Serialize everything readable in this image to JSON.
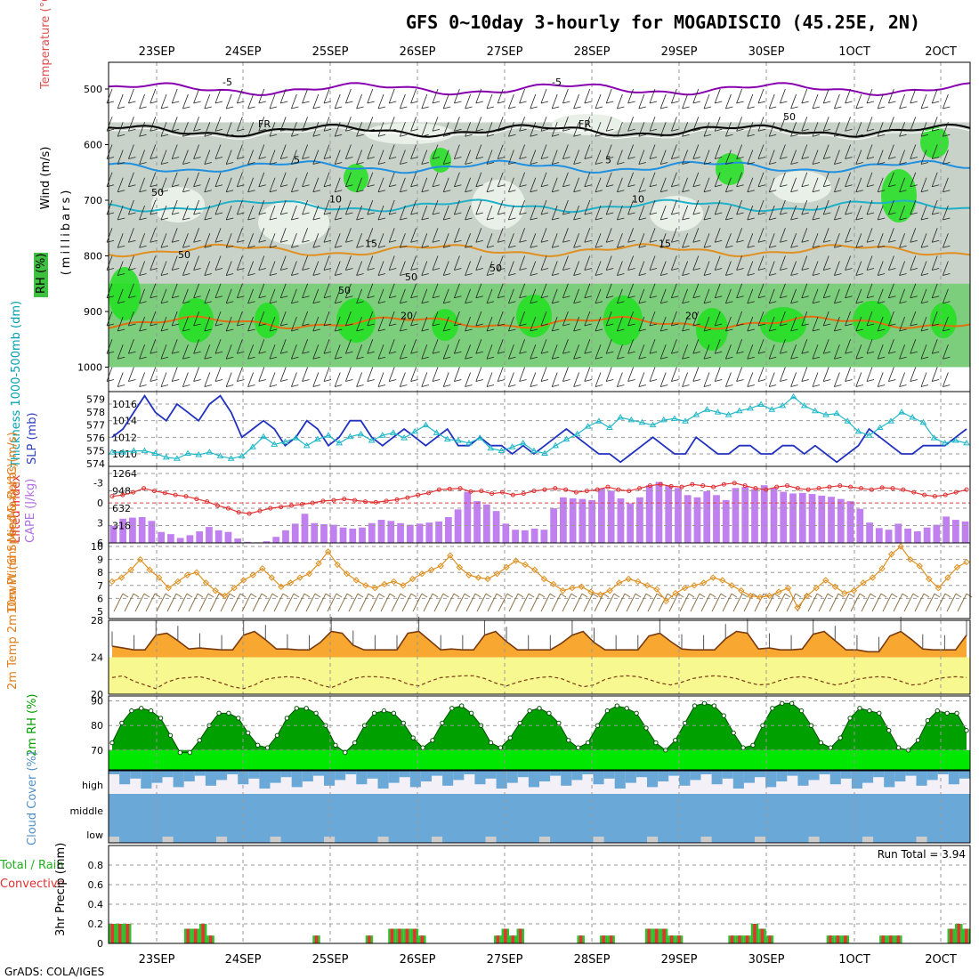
{
  "title": "GFS 0~10day 3-hourly for MOGADISCIO (45.25E, 2N)",
  "credit": "GrADS: COLA/IGES",
  "dates": [
    "23SEP",
    "24SEP",
    "25SEP",
    "26SEP",
    "27SEP",
    "28SEP",
    "29SEP",
    "30SEP",
    "1OCT",
    "2OCT"
  ],
  "colors": {
    "wind_fill": "#c8d2c8",
    "rh_green": "#55c855",
    "cape": "#c080f0",
    "temp_fill": "#f8a830",
    "dew_fill": "#f8f890",
    "rh2m_dark": "#00a000",
    "rh2m_light": "#00e800",
    "cloud": "#6aa8d8",
    "rain": "#e83030",
    "precip": "#30c030"
  },
  "chart_data": [
    {
      "type": "contour",
      "panel": "upper-air",
      "ylabel_wind": "Wind (m/s)",
      "ylabel_temp": "Temperature (°C)",
      "ylabel_rh": "RH (%)",
      "ylabel_units": "(millibars)",
      "yticks": [
        "500",
        "600",
        "700",
        "800",
        "900",
        "1000"
      ],
      "ylim": [
        450,
        1050
      ],
      "isotherms": [
        {
          "label": "-5",
          "level": 500
        },
        {
          "label": "FR",
          "level": 575
        },
        {
          "label": "5",
          "level": 640
        },
        {
          "label": "10",
          "level": 710
        },
        {
          "label": "15",
          "level": 790
        },
        {
          "label": "20",
          "level": 920
        }
      ],
      "rh_labels": [
        "50",
        "50",
        "50",
        "50",
        "50",
        "50"
      ]
    },
    {
      "type": "line",
      "panel": "thickness-slp",
      "ylabel_thick": "Thickness 1000-500mb (dm)",
      "ylabel_slp": "SLP (mb)",
      "thick_ticks": [
        "579",
        "578",
        "577",
        "576",
        "575",
        "574"
      ],
      "slp_ticks": [
        "1016",
        "1014",
        "1012",
        "1010"
      ],
      "slp_range": [
        1008.5,
        1017.5
      ],
      "thick_range": [
        573.8,
        579.6
      ],
      "slp": [
        1012,
        1013,
        1015,
        1017,
        1015,
        1014,
        1016,
        1015,
        1014,
        1016,
        1017,
        1015,
        1012,
        1013,
        1014,
        1013,
        1011,
        1012,
        1014,
        1013,
        1011,
        1012,
        1014,
        1014,
        1012,
        1011,
        1012,
        1013,
        1012,
        1011,
        1012,
        1013,
        1011,
        1011,
        1012,
        1011,
        1011,
        1010,
        1011,
        1010,
        1011,
        1012,
        1013,
        1012,
        1011,
        1010,
        1010,
        1009,
        1010,
        1011,
        1012,
        1011,
        1010,
        1010,
        1012,
        1011,
        1010,
        1010,
        1011,
        1011,
        1010,
        1010,
        1011,
        1011,
        1010,
        1011,
        1010,
        1009,
        1010,
        1011,
        1013,
        1012,
        1011,
        1010,
        1010,
        1011,
        1011,
        1011,
        1012,
        1013
      ],
      "thickness": [
        574.9,
        574.9,
        575.0,
        575.0,
        574.8,
        574.5,
        574.4,
        574.8,
        574.7,
        574.9,
        574.6,
        574.4,
        574.6,
        575.3,
        576.1,
        575.5,
        575.7,
        576.0,
        575.4,
        575.9,
        576.2,
        575.6,
        576.1,
        576.3,
        575.8,
        576.2,
        576.4,
        576.0,
        576.5,
        577.0,
        576.4,
        575.9,
        575.8,
        575.6,
        576.0,
        575.2,
        575.0,
        575.3,
        575.6,
        575.0,
        574.8,
        575.4,
        575.9,
        576.3,
        576.9,
        577.3,
        576.8,
        577.6,
        577.4,
        577.2,
        577.0,
        577.4,
        577.5,
        577.3,
        577.8,
        578.2,
        578.0,
        577.8,
        578.1,
        578.3,
        578.6,
        578.2,
        578.5,
        579.2,
        578.5,
        578.1,
        577.8,
        577.9,
        577.3,
        576.5,
        576.2,
        576.8,
        577.3,
        578.0,
        577.6,
        577.2,
        576.0,
        575.6,
        575.8,
        575.6
      ]
    },
    {
      "type": "bar+line",
      "panel": "cape-li",
      "ylabel_li": "Lifted Index",
      "ylabel_cape": "CAPE (J/kg)",
      "li_ticks": [
        "-3",
        "0",
        "3",
        "6"
      ],
      "li_range": [
        -5.5,
        6
      ],
      "cape_ticks": [
        "1264",
        "948",
        "632",
        "316"
      ],
      "cape_range": [
        0,
        1264
      ],
      "cape": [
        310,
        440,
        460,
        470,
        400,
        200,
        160,
        90,
        140,
        210,
        290,
        230,
        200,
        80,
        20,
        10,
        30,
        110,
        230,
        350,
        530,
        360,
        340,
        330,
        280,
        260,
        280,
        360,
        420,
        400,
        360,
        330,
        350,
        370,
        390,
        470,
        610,
        930,
        760,
        700,
        580,
        350,
        240,
        230,
        260,
        240,
        630,
        830,
        810,
        800,
        780,
        990,
        950,
        810,
        720,
        830,
        1050,
        1110,
        1040,
        1000,
        870,
        830,
        940,
        870,
        780,
        1000,
        1020,
        980,
        1050,
        1000,
        930,
        900,
        910,
        890,
        860,
        840,
        800,
        760,
        620,
        370,
        270,
        240,
        350,
        260,
        210,
        280,
        330,
        480,
        420,
        390
      ],
      "lifted_index": [
        -1.0,
        -1.2,
        -1.6,
        -2.2,
        -1.8,
        -1.5,
        -1.2,
        -1.0,
        -0.6,
        -0.2,
        0.4,
        0.8,
        1.4,
        1.6,
        1.2,
        0.8,
        0.6,
        0.4,
        0.2,
        0.0,
        -0.3,
        -0.4,
        -0.6,
        -0.4,
        -0.2,
        -0.1,
        -0.3,
        -0.5,
        -0.8,
        -1.2,
        -1.5,
        -2.0,
        -2.1,
        -2.2,
        -1.7,
        -1.8,
        -1.4,
        -1.6,
        -1.2,
        -1.4,
        -1.8,
        -2.0,
        -2.2,
        -2.0,
        -1.6,
        -1.8,
        -2.0,
        -2.4,
        -2.0,
        -1.8,
        -2.2,
        -2.6,
        -2.8,
        -2.5,
        -2.4,
        -2.8,
        -2.6,
        -2.4,
        -2.8,
        -3.0,
        -2.6,
        -2.2,
        -2.0,
        -2.4,
        -2.6,
        -2.2,
        -2.0,
        -2.2,
        -2.4,
        -2.6,
        -2.4,
        -2.2,
        -2.0,
        -2.3,
        -2.2,
        -2.0,
        -1.6,
        -1.2,
        -1.0,
        -1.2,
        -1.6,
        -2.0
      ]
    },
    {
      "type": "line",
      "panel": "10m-wind",
      "ylabel": "10m Wind Speed & Barbs (m/s)",
      "yticks": [
        "10",
        "9",
        "8",
        "7",
        "6",
        "5"
      ],
      "ylim": [
        5,
        10
      ],
      "wind_speed": [
        7.3,
        7.6,
        8.2,
        9.0,
        8.2,
        7.6,
        6.8,
        7.3,
        7.8,
        8.0,
        7.2,
        6.6,
        6.2,
        6.8,
        7.4,
        7.8,
        8.3,
        7.6,
        6.9,
        7.2,
        7.6,
        7.9,
        8.7,
        9.6,
        8.6,
        7.9,
        7.4,
        7.0,
        6.8,
        7.1,
        7.3,
        7.0,
        7.5,
        7.9,
        8.2,
        8.5,
        9.3,
        8.4,
        7.8,
        7.6,
        7.5,
        7.9,
        8.4,
        8.9,
        8.6,
        8.2,
        7.5,
        7.1,
        6.6,
        6.8,
        6.9,
        6.5,
        6.3,
        6.6,
        7.2,
        7.5,
        7.3,
        7.0,
        6.7,
        5.8,
        6.4,
        6.8,
        7.0,
        7.2,
        7.6,
        7.4,
        7.0,
        6.6,
        6.2,
        6.1,
        6.2,
        6.5,
        6.8,
        5.3,
        6.2,
        6.8,
        7.4,
        6.9,
        6.4,
        6.6,
        7.2,
        7.6,
        8.3,
        9.4,
        10.0,
        9.0,
        8.5,
        7.5,
        6.8,
        7.6,
        8.4,
        8.8
      ]
    },
    {
      "type": "area",
      "panel": "2m-temp",
      "ylabel": "2m Temp 2m DewPt (6hr Min/Max) (°C)",
      "yticks": [
        "28",
        "24",
        "20"
      ],
      "ylim": [
        20,
        28
      ],
      "temp": [
        25.2,
        25.0,
        24.8,
        24.8,
        26.4,
        26.6,
        25.8,
        24.9,
        25.0,
        24.9,
        24.8,
        24.8,
        26.4,
        26.8,
        25.9,
        24.9,
        24.9,
        24.8,
        24.8,
        25.6,
        26.8,
        26.6,
        25.3,
        24.8,
        24.8,
        24.8,
        24.8,
        26.6,
        26.8,
        25.8,
        24.8,
        24.9,
        24.8,
        24.8,
        26.4,
        26.8,
        25.7,
        24.8,
        24.8,
        24.8,
        24.8,
        25.5,
        26.4,
        26.8,
        25.6,
        24.8,
        24.8,
        24.8,
        24.8,
        26.3,
        26.6,
        25.7,
        24.9,
        24.8,
        24.8,
        24.8,
        26.0,
        26.8,
        26.6,
        24.9,
        25.0,
        24.8,
        24.8,
        24.9,
        26.5,
        26.8,
        25.8,
        24.8,
        24.8,
        24.6,
        24.6,
        26.3,
        26.8,
        25.9,
        24.9,
        24.8,
        24.8,
        24.8,
        26.4
      ],
      "dewpoint": [
        21.8,
        22.0,
        21.4,
        21.0,
        20.6,
        21.3,
        21.7,
        21.8,
        21.9,
        21.6,
        21.2,
        20.8,
        20.6,
        21.0,
        21.6,
        21.8,
        21.9,
        21.8,
        21.5,
        21.0,
        20.7,
        21.2,
        21.7,
        21.9,
        21.9,
        21.8,
        21.6,
        21.1,
        20.9,
        21.4,
        21.8,
        21.9,
        22.0,
        22.0,
        21.7,
        21.2,
        20.9,
        21.3,
        21.6,
        21.8,
        21.9,
        21.7,
        21.2,
        20.8,
        21.0,
        21.6,
        21.9,
        22.0,
        21.9,
        21.6,
        21.2,
        21.0,
        21.3,
        21.7,
        21.9,
        22.0,
        21.9,
        21.7,
        21.3,
        21.0,
        21.1,
        21.5,
        21.8,
        21.9,
        21.7,
        21.3,
        21.0,
        21.2,
        21.6,
        21.8,
        21.9,
        21.8,
        21.4,
        21.0,
        21.1,
        21.6,
        21.8,
        21.9,
        21.8
      ]
    },
    {
      "type": "area",
      "panel": "2m-rh",
      "ylabel": "2m RH (%)",
      "yticks": [
        "90",
        "80",
        "70"
      ],
      "ylim": [
        62,
        92
      ],
      "rh": [
        73,
        81,
        86,
        87,
        86,
        83,
        76,
        69,
        69,
        74,
        80,
        85,
        85,
        83,
        77,
        72,
        71,
        76,
        83,
        87,
        87,
        85,
        80,
        72,
        69,
        73,
        80,
        85,
        86,
        85,
        81,
        75,
        71,
        74,
        81,
        87,
        88,
        85,
        80,
        73,
        71,
        75,
        81,
        86,
        87,
        85,
        81,
        74,
        71,
        73,
        80,
        86,
        88,
        87,
        85,
        79,
        73,
        70,
        74,
        81,
        88,
        89,
        88,
        84,
        77,
        71,
        72,
        80,
        87,
        89,
        89,
        86,
        80,
        73,
        71,
        75,
        83,
        87,
        86,
        85,
        78,
        71,
        70,
        74,
        82,
        86,
        85,
        85,
        78
      ]
    },
    {
      "type": "bar",
      "panel": "cloud-cover",
      "ylabel": "Cloud Cover (%)",
      "levels": [
        "high",
        "middle",
        "low"
      ]
    },
    {
      "type": "bar",
      "panel": "precip",
      "ylabel_total": "Total / Rain",
      "ylabel_conv": "Convective",
      "ylabel": "3hr Precip (mm)",
      "yticks": [
        "0.8",
        "0.6",
        "0.4",
        "0.2",
        "0"
      ],
      "ylim": [
        0,
        1.0
      ],
      "run_total_label": "Run Total = 3.94",
      "precip": [
        0.2,
        0.2,
        0.2,
        0,
        0,
        0,
        0,
        0,
        0,
        0,
        0.15,
        0.15,
        0.2,
        0.08,
        0,
        0,
        0,
        0,
        0,
        0,
        0,
        0,
        0,
        0,
        0,
        0,
        0,
        0.08,
        0,
        0,
        0,
        0,
        0,
        0,
        0.08,
        0,
        0,
        0.15,
        0.15,
        0.15,
        0.15,
        0.08,
        0,
        0,
        0,
        0,
        0,
        0,
        0,
        0,
        0,
        0.08,
        0.15,
        0.08,
        0.15,
        0,
        0,
        0,
        0,
        0,
        0,
        0,
        0.08,
        0,
        0,
        0.08,
        0.08,
        0,
        0,
        0,
        0,
        0.15,
        0.15,
        0.15,
        0.08,
        0.08,
        0,
        0,
        0,
        0,
        0,
        0,
        0.08,
        0.08,
        0.08,
        0.2,
        0.15,
        0.08,
        0,
        0,
        0,
        0,
        0,
        0,
        0,
        0.08,
        0.08,
        0.08,
        0,
        0,
        0,
        0,
        0.08,
        0.08,
        0.08,
        0,
        0,
        0,
        0,
        0,
        0,
        0.15,
        0.2,
        0.15
      ]
    }
  ]
}
